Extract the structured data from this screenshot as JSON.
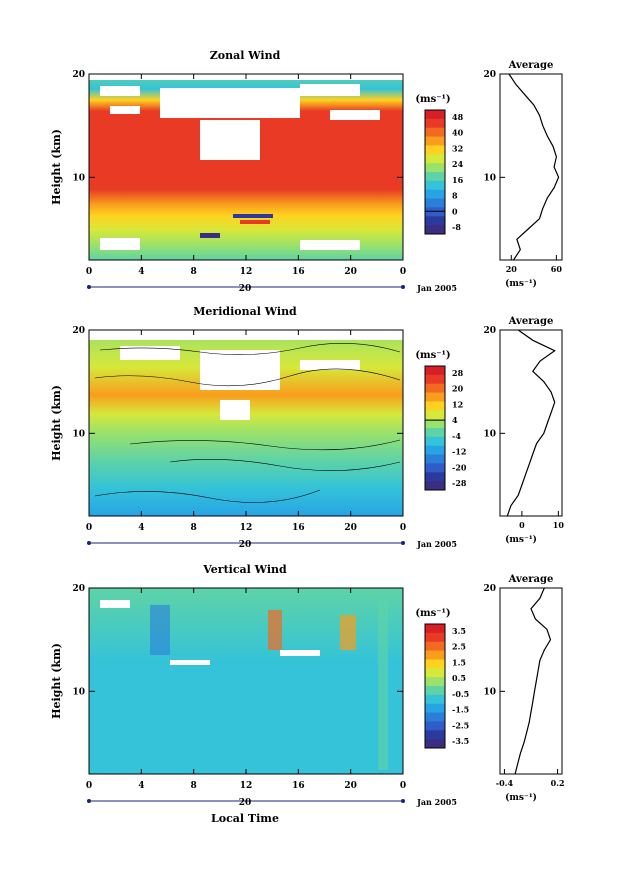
{
  "figure": {
    "xlabel": "Local Time",
    "date_label": "Jan 2005",
    "day_label": "20"
  },
  "chart_data": [
    {
      "type": "heatmap",
      "title": "Zonal Wind",
      "ylabel": "Height (km)",
      "xlim": [
        0,
        24
      ],
      "ylim": [
        2,
        20
      ],
      "x_ticks": [
        "0",
        "4",
        "8",
        "12",
        "16",
        "20",
        "0"
      ],
      "y_ticks": [
        "10",
        "20"
      ],
      "colorbar": {
        "unit": "(ms⁻¹)",
        "ticks": [
          "48",
          "40",
          "32",
          "24",
          "16",
          "8",
          "0",
          "-8"
        ],
        "colors": [
          "#d81f26",
          "#e83a24",
          "#f26a21",
          "#f99d1c",
          "#ffd21f",
          "#d6e83a",
          "#9be26a",
          "#5fd3a6",
          "#34c3d8",
          "#27a4e6",
          "#2b7fd8",
          "#2f5cc8",
          "#2b3a9e",
          "#3a2e83"
        ]
      },
      "average_profile": {
        "title": "Average",
        "xlabel": "(ms⁻¹)",
        "x_ticks": [
          "20",
          "60"
        ],
        "xlim": [
          10,
          65
        ],
        "y_ticks": [
          "10",
          "20"
        ],
        "height": [
          2,
          3,
          4,
          5,
          6,
          7,
          8,
          9,
          10,
          11,
          12,
          13,
          14,
          15,
          16,
          17,
          18,
          19,
          20
        ],
        "value": [
          22,
          28,
          25,
          35,
          45,
          48,
          52,
          58,
          62,
          58,
          60,
          57,
          52,
          48,
          45,
          40,
          32,
          24,
          18
        ]
      }
    },
    {
      "type": "heatmap",
      "title": "Meridional Wind",
      "ylabel": "Height (km)",
      "xlim": [
        0,
        24
      ],
      "ylim": [
        2,
        20
      ],
      "x_ticks": [
        "0",
        "4",
        "8",
        "12",
        "16",
        "20",
        "0"
      ],
      "y_ticks": [
        "10",
        "20"
      ],
      "colorbar": {
        "unit": "(ms⁻¹)",
        "ticks": [
          "28",
          "20",
          "12",
          "4",
          "-4",
          "-12",
          "-20",
          "-28"
        ],
        "colors": [
          "#d81f26",
          "#e83a24",
          "#f26a21",
          "#f99d1c",
          "#ffd21f",
          "#d6e83a",
          "#9be26a",
          "#5fd3a6",
          "#34c3d8",
          "#27a4e6",
          "#2b7fd8",
          "#2f5cc8",
          "#2b3a9e",
          "#3a2e83"
        ]
      },
      "average_profile": {
        "title": "Average",
        "xlabel": "(ms⁻¹)",
        "x_ticks": [
          "0",
          "10"
        ],
        "xlim": [
          -6,
          11
        ],
        "y_ticks": [
          "10",
          "20"
        ],
        "height": [
          2,
          3,
          4,
          5,
          6,
          7,
          8,
          9,
          10,
          11,
          12,
          13,
          14,
          15,
          16,
          17,
          18,
          19,
          20
        ],
        "value": [
          -4,
          -3,
          -1,
          0,
          1,
          2,
          3,
          4,
          6,
          7,
          8,
          9,
          8,
          6,
          3,
          5,
          9,
          3,
          -1
        ]
      }
    },
    {
      "type": "heatmap",
      "title": "Vertical Wind",
      "ylabel": "Height (km)",
      "xlim": [
        0,
        24
      ],
      "ylim": [
        2,
        20
      ],
      "x_ticks": [
        "0",
        "4",
        "8",
        "12",
        "16",
        "20",
        "0"
      ],
      "y_ticks": [
        "10",
        "20"
      ],
      "colorbar": {
        "unit": "(ms⁻¹)",
        "ticks": [
          "3.5",
          "2.5",
          "1.5",
          "0.5",
          "-0.5",
          "-1.5",
          "-2.5",
          "-3.5"
        ],
        "colors": [
          "#d81f26",
          "#e83a24",
          "#f26a21",
          "#f99d1c",
          "#ffd21f",
          "#d6e83a",
          "#9be26a",
          "#5fd3a6",
          "#34c3d8",
          "#27a4e6",
          "#2b7fd8",
          "#2f5cc8",
          "#2b3a9e",
          "#3a2e83"
        ]
      },
      "average_profile": {
        "title": "Average",
        "xlabel": "(ms⁻¹)",
        "x_ticks": [
          "-0.4",
          "0.2"
        ],
        "xlim": [
          -0.45,
          0.25
        ],
        "y_ticks": [
          "10",
          "20"
        ],
        "height": [
          2,
          3,
          4,
          5,
          6,
          7,
          8,
          9,
          10,
          11,
          12,
          13,
          14,
          15,
          16,
          17,
          18,
          19,
          20
        ],
        "value": [
          -0.28,
          -0.25,
          -0.22,
          -0.18,
          -0.15,
          -0.12,
          -0.1,
          -0.08,
          -0.06,
          -0.04,
          -0.02,
          0.0,
          0.05,
          0.12,
          0.08,
          -0.05,
          -0.1,
          0.0,
          0.05
        ]
      }
    }
  ]
}
